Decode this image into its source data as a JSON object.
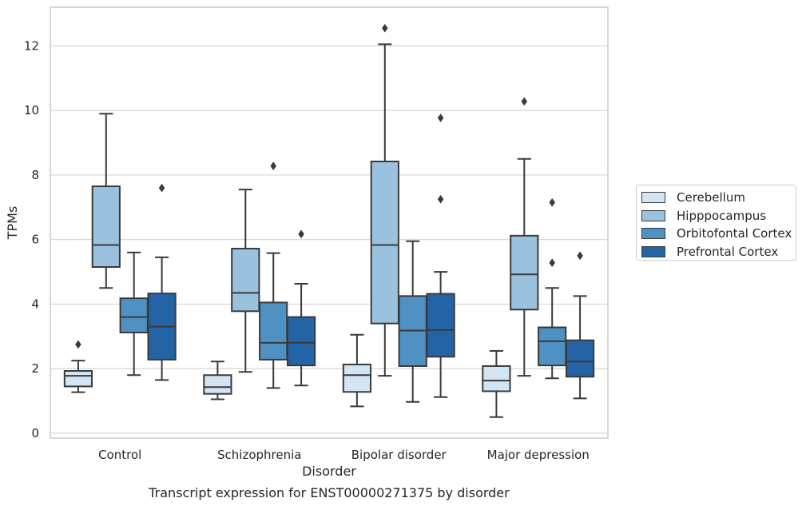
{
  "chart_data": {
    "type": "boxplot",
    "title": "",
    "caption": "Transcript expression for ENST00000271375 by disorder",
    "xlabel": "Disorder",
    "ylabel": "TPMs",
    "categories": [
      "Control",
      "Schizophrenia",
      "Bipolar disorder",
      "Major depression"
    ],
    "ylim": [
      -0.15,
      13.2
    ],
    "yticks": [
      0,
      2,
      4,
      6,
      8,
      10,
      12
    ],
    "grid": "horizontal",
    "legend_position": "right",
    "series": [
      {
        "name": "Cerebellum",
        "color": "#d3e4f3",
        "boxes": [
          {
            "whisker_low": 1.27,
            "q1": 1.45,
            "median": 1.78,
            "q3": 1.93,
            "whisker_high": 2.25,
            "outliers": [
              2.75
            ]
          },
          {
            "whisker_low": 1.05,
            "q1": 1.22,
            "median": 1.43,
            "q3": 1.8,
            "whisker_high": 2.22,
            "outliers": []
          },
          {
            "whisker_low": 0.83,
            "q1": 1.28,
            "median": 1.8,
            "q3": 2.13,
            "whisker_high": 3.05,
            "outliers": []
          },
          {
            "whisker_low": 0.5,
            "q1": 1.3,
            "median": 1.63,
            "q3": 2.08,
            "whisker_high": 2.55,
            "outliers": []
          }
        ]
      },
      {
        "name": "Hipppocampus",
        "color": "#9ac1dd",
        "boxes": [
          {
            "whisker_low": 4.5,
            "q1": 5.15,
            "median": 5.83,
            "q3": 7.65,
            "whisker_high": 9.9,
            "outliers": []
          },
          {
            "whisker_low": 1.9,
            "q1": 3.78,
            "median": 4.35,
            "q3": 5.72,
            "whisker_high": 7.55,
            "outliers": []
          },
          {
            "whisker_low": 1.78,
            "q1": 3.4,
            "median": 5.83,
            "q3": 8.42,
            "whisker_high": 12.05,
            "outliers": [
              12.55
            ]
          },
          {
            "whisker_low": 1.78,
            "q1": 3.83,
            "median": 4.92,
            "q3": 6.12,
            "whisker_high": 8.5,
            "outliers": [
              10.28
            ]
          }
        ]
      },
      {
        "name": "Orbitofontal Cortex",
        "color": "#4f91c3",
        "boxes": [
          {
            "whisker_low": 1.8,
            "q1": 3.12,
            "median": 3.6,
            "q3": 4.18,
            "whisker_high": 5.6,
            "outliers": []
          },
          {
            "whisker_low": 1.4,
            "q1": 2.28,
            "median": 2.8,
            "q3": 4.05,
            "whisker_high": 5.58,
            "outliers": [
              8.28
            ]
          },
          {
            "whisker_low": 0.97,
            "q1": 2.08,
            "median": 3.18,
            "q3": 4.25,
            "whisker_high": 5.95,
            "outliers": []
          },
          {
            "whisker_low": 1.7,
            "q1": 2.1,
            "median": 2.85,
            "q3": 3.28,
            "whisker_high": 4.5,
            "outliers": [
              5.28,
              7.15
            ]
          }
        ]
      },
      {
        "name": "Prefrontal Cortex",
        "color": "#2464a6",
        "boxes": [
          {
            "whisker_low": 1.65,
            "q1": 2.28,
            "median": 3.3,
            "q3": 4.33,
            "whisker_high": 5.45,
            "outliers": [
              7.6
            ]
          },
          {
            "whisker_low": 1.48,
            "q1": 2.1,
            "median": 2.8,
            "q3": 3.6,
            "whisker_high": 4.63,
            "outliers": [
              6.17
            ]
          },
          {
            "whisker_low": 1.12,
            "q1": 2.37,
            "median": 3.2,
            "q3": 4.32,
            "whisker_high": 5.0,
            "outliers": [
              7.25,
              9.77
            ]
          },
          {
            "whisker_low": 1.08,
            "q1": 1.75,
            "median": 2.22,
            "q3": 2.88,
            "whisker_high": 4.25,
            "outliers": [
              5.5
            ]
          }
        ]
      }
    ]
  }
}
